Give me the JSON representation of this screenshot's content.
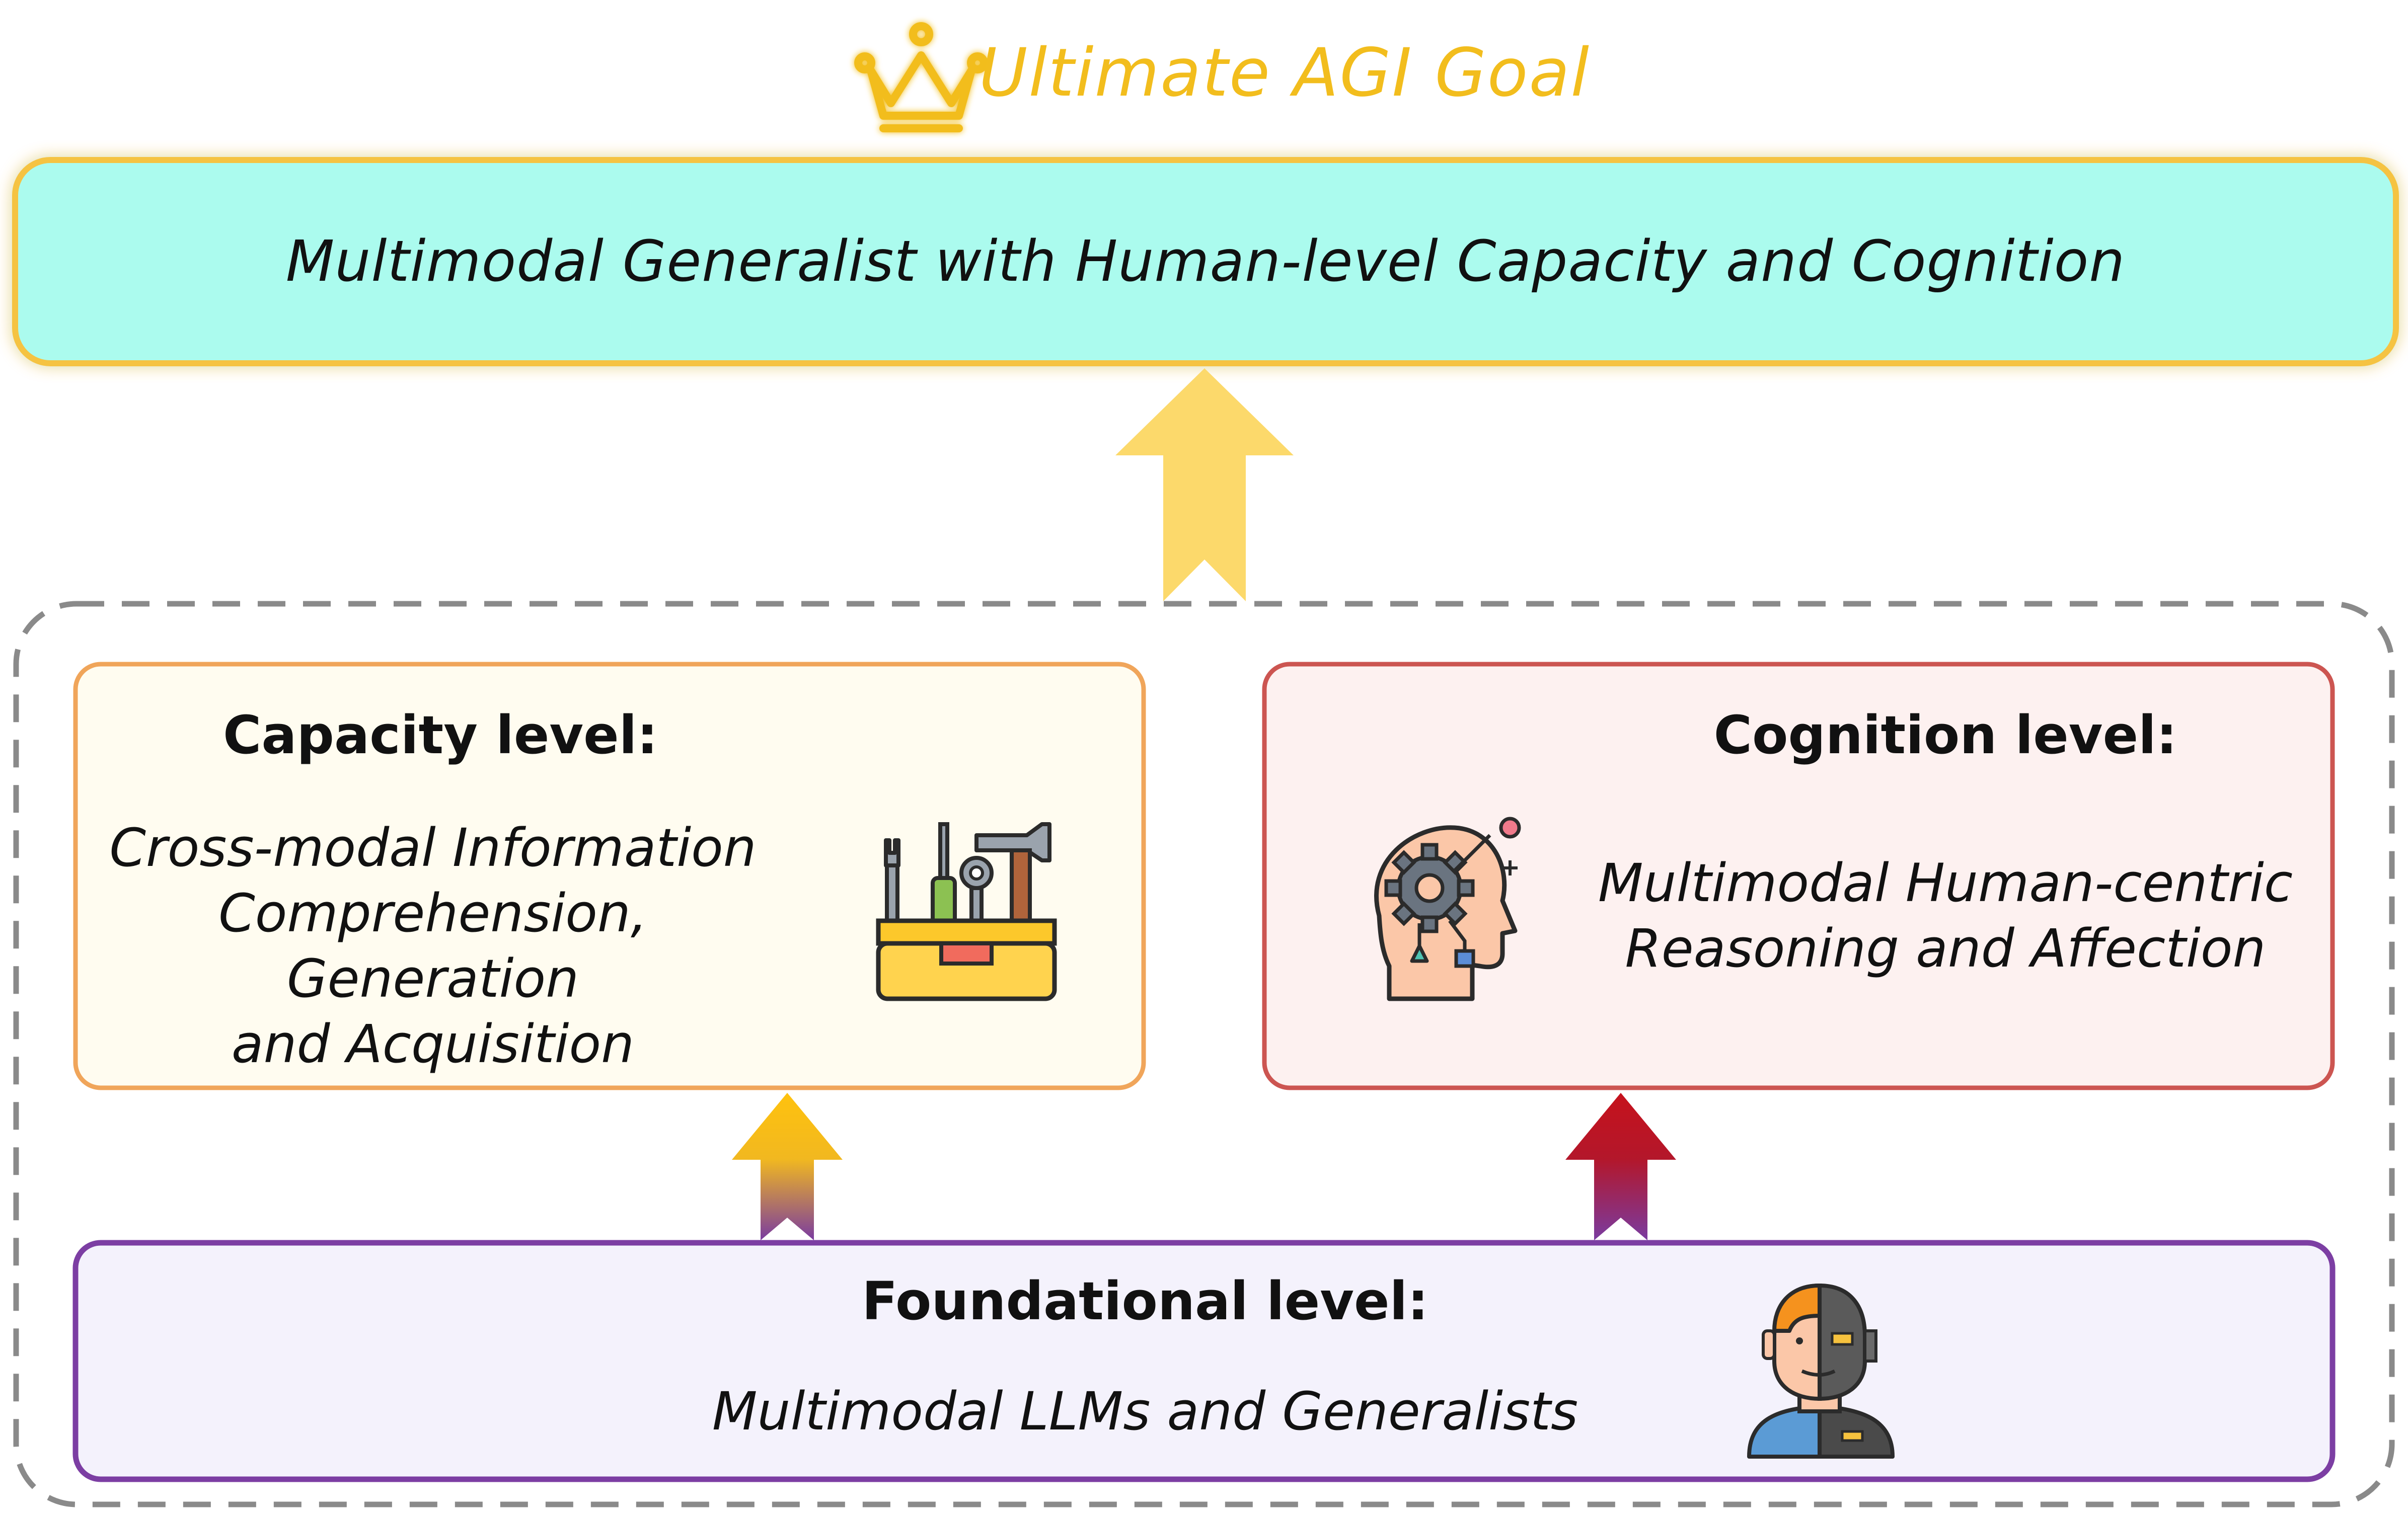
{
  "goal": {
    "header": "Ultimate AGI Goal",
    "icon": "crown-icon",
    "text": "Multimodal Generalist with Human-level Capacity and Cognition"
  },
  "capacity": {
    "heading": "Capacity level:",
    "lines": [
      "Cross-modal Information",
      "Comprehension, Generation",
      "and Acquisition"
    ],
    "icon": "toolbox-icon"
  },
  "cognition": {
    "heading": "Cognition level:",
    "lines": [
      "Multimodal Human-centric",
      "Reasoning and Affection"
    ],
    "icon": "ai-head-icon"
  },
  "foundational": {
    "heading": "Foundational level:",
    "text": "Multimodal  LLMs and Generalists",
    "icon": "cyborg-icon"
  },
  "colors": {
    "goal_fill": "#abfbee",
    "goal_border": "#f5c342",
    "capacity_fill": "#fffcf0",
    "capacity_border": "#f0a55a",
    "cognition_fill": "#fdf1f0",
    "cognition_border": "#cc5551",
    "foundational_fill": "#f4f2fc",
    "foundational_border": "#7c3ea3",
    "dashed_border": "#8a8a8a",
    "title": "#f2bd1d"
  }
}
